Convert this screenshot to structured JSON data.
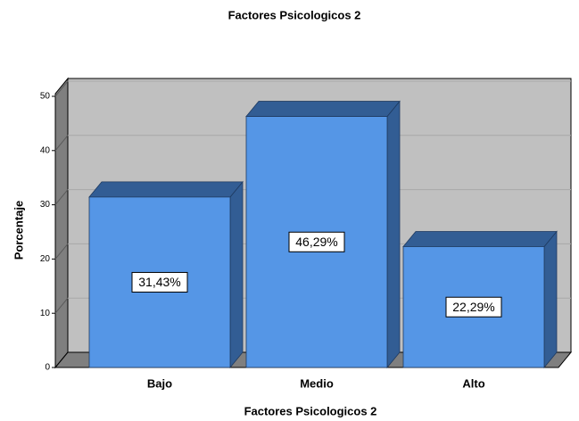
{
  "chart_data": {
    "type": "bar",
    "title": "Factores Psicologicos 2",
    "x_label": "Factores Psicologicos 2",
    "y_label": "Porcentaje",
    "categories": [
      "Bajo",
      "Medio",
      "Alto"
    ],
    "values": [
      31.43,
      46.29,
      22.29
    ],
    "value_labels": [
      "31,43%",
      "46,29%",
      "22,29%"
    ],
    "color": "#5596e6",
    "ylim": [
      0,
      50
    ],
    "yticks": [
      0,
      10,
      20,
      30,
      40,
      50
    ],
    "grid": true
  }
}
